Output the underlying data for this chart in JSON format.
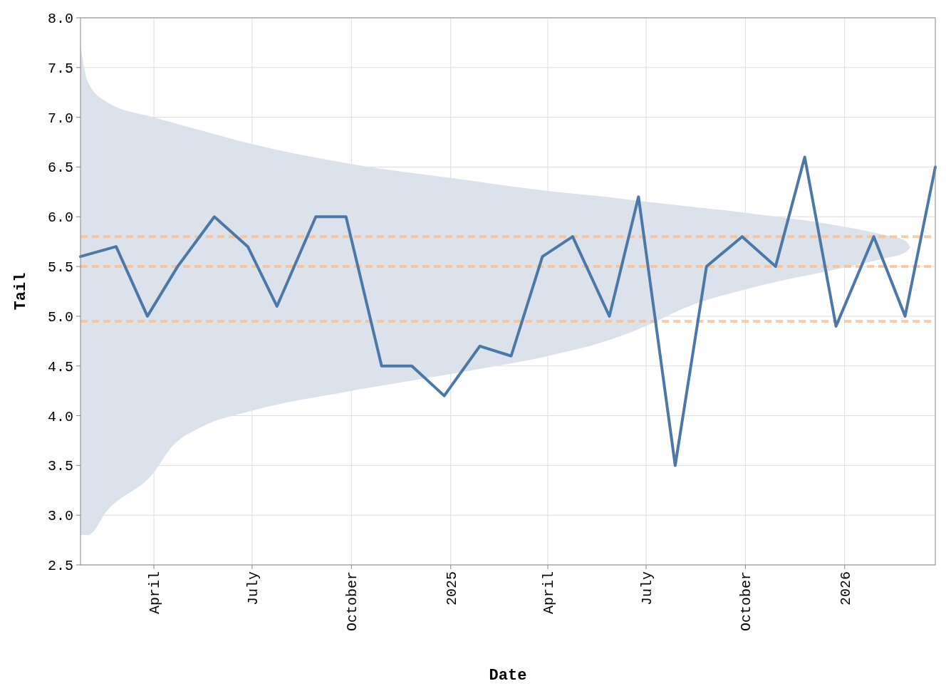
{
  "chart_data": {
    "type": "line",
    "xlabel": "Date",
    "ylabel": "Tail",
    "xlim": [
      "2024-01-24",
      "2026-03-26"
    ],
    "ylim": [
      2.5,
      8.0
    ],
    "xticks": [
      {
        "value": "2024-04-01",
        "label": "April"
      },
      {
        "value": "2024-07-01",
        "label": "July"
      },
      {
        "value": "2024-10-01",
        "label": "October"
      },
      {
        "value": "2025-01-01",
        "label": "2025"
      },
      {
        "value": "2025-04-01",
        "label": "April"
      },
      {
        "value": "2025-07-01",
        "label": "July"
      },
      {
        "value": "2025-10-01",
        "label": "October"
      },
      {
        "value": "2026-01-01",
        "label": "2026"
      }
    ],
    "yticks": [
      {
        "value": 2.5,
        "label": "2.5"
      },
      {
        "value": 3,
        "label": "3.0"
      },
      {
        "value": 3.5,
        "label": "3.5"
      },
      {
        "value": 4,
        "label": "4.0"
      },
      {
        "value": 4.5,
        "label": "4.5"
      },
      {
        "value": 5,
        "label": "5.0"
      },
      {
        "value": 5.5,
        "label": "5.5"
      },
      {
        "value": 6,
        "label": "6.0"
      },
      {
        "value": 6.5,
        "label": "6.5"
      },
      {
        "value": 7,
        "label": "7.0"
      },
      {
        "value": 7.5,
        "label": "7.5"
      },
      {
        "value": 8,
        "label": "8.0"
      }
    ],
    "grid": true,
    "series": [
      {
        "color": "#dbe2ec",
        "x": [
          "2024-01-24",
          "2024-01-31",
          "2024-02-18",
          "2024-04-01",
          "2024-04-17",
          "2024-05-14",
          "2024-07-01",
          "2024-10-01",
          "2025-01-01",
          "2025-04-01",
          "2025-05-25",
          "2025-07-01",
          "2025-08-05",
          "2025-10-01",
          "2026-01-01",
          "2026-02-06",
          "2026-02-26",
          "2026-03-03"
        ],
        "values": [
          null,
          null,
          null,
          null,
          null,
          null,
          null,
          null,
          null,
          null,
          null,
          null,
          null,
          null,
          null,
          null,
          null,
          null
        ],
        "upper": [
          7.72,
          7.35,
          7.15,
          7.0,
          6.95,
          6.87,
          6.73,
          6.53,
          6.39,
          6.26,
          6.2,
          6.15,
          6.11,
          6.04,
          5.9,
          5.82,
          5.76,
          5.69
        ],
        "lower": [
          2.8,
          2.8,
          3.05,
          3.43,
          3.68,
          3.88,
          4.05,
          4.25,
          4.42,
          4.6,
          4.75,
          4.9,
          5.08,
          5.27,
          5.49,
          5.58,
          5.64,
          5.69
        ]
      },
      {
        "color": "#4c78a8",
        "x": [
          "2024-01-24",
          "2024-02-26",
          "2024-03-26",
          "2024-04-23",
          "2024-05-27",
          "2024-06-27",
          "2024-07-24",
          "2024-08-29",
          "2024-09-26",
          "2024-10-29",
          "2024-11-26",
          "2024-12-26",
          "2025-01-28",
          "2025-02-26",
          "2025-03-27",
          "2025-04-24",
          "2025-05-28",
          "2025-06-24",
          "2025-07-28",
          "2025-08-26",
          "2025-09-28",
          "2025-10-29",
          "2025-11-25",
          "2025-12-24",
          "2026-01-28",
          "2026-02-26",
          "2026-03-26"
        ],
        "values": [
          5.6,
          5.7,
          5.0,
          5.5,
          6.0,
          5.7,
          5.1,
          6.0,
          6.0,
          4.5,
          4.5,
          4.2,
          4.7,
          4.6,
          5.6,
          5.8,
          5.0,
          6.2,
          3.5,
          5.5,
          5.8,
          5.5,
          6.6,
          4.9,
          5.8,
          5.0,
          6.5
        ]
      }
    ],
    "ref_lines": [
      {
        "axis": "y",
        "value": 5.8,
        "label": null,
        "color": "#fdbf8a",
        "line_style": "dashed"
      },
      {
        "axis": "y",
        "value": 5.5,
        "label": null,
        "color": "#fdbf8a",
        "line_style": "dashed"
      },
      {
        "axis": "y",
        "value": 4.95,
        "label": null,
        "color": "#fdbf8a",
        "line_style": "dashed"
      }
    ]
  }
}
